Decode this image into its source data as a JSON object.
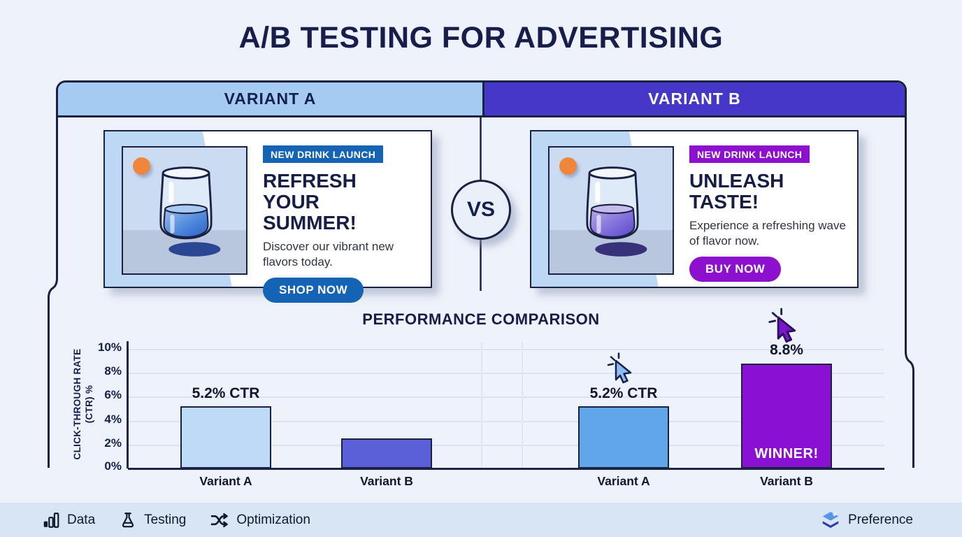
{
  "title": "A/B TESTING FOR ADVERTISING",
  "vs": "VS",
  "variant_a": {
    "header": "VARIANT A",
    "badge": "NEW DRINK LAUNCH",
    "headline": "REFRESH YOUR SUMMER!",
    "description": "Discover our vibrant new flavors today.",
    "cta": "SHOP NOW"
  },
  "variant_b": {
    "header": "VARIANT B",
    "badge": "NEW DRINK LAUNCH",
    "headline": "UNLEASH TASTE!",
    "description": "Experience a refreshing wave of flavor now.",
    "cta": "BUY NOW"
  },
  "chart_data": {
    "type": "bar",
    "title": "PERFORMANCE COMPARISON",
    "xlabel": "",
    "ylabel": "CLICK-THROUGH RATE (CTR) %",
    "ylim": [
      0,
      10
    ],
    "y_ticks": [
      "10%",
      "8%",
      "6%",
      "4%",
      "2%",
      "0%"
    ],
    "grid": true,
    "legend": "none",
    "groups": [
      {
        "name": "Variant A ad test",
        "categories": [
          "Variant A",
          "Variant B"
        ],
        "values": [
          5.2,
          2.5
        ],
        "bar_labels": [
          "5.2% CTR",
          ""
        ],
        "colors": [
          "#BEDAF6",
          "#5C60D8"
        ]
      },
      {
        "name": "Variant B ad test",
        "categories": [
          "Variant A",
          "Variant B"
        ],
        "values": [
          5.2,
          8.8
        ],
        "bar_labels": [
          "5.2% CTR",
          "8.8%"
        ],
        "colors": [
          "#60A6EB",
          "#8A10D3"
        ],
        "winner_label": "WINNER!"
      }
    ],
    "annotations": [
      {
        "icon": "click-cursor-icon-blue",
        "target": "Variant A (right group)"
      },
      {
        "icon": "click-cursor-icon-purple",
        "target": "Variant B (right group)"
      }
    ]
  },
  "footer": {
    "items": [
      {
        "icon": "bar-chart-icon",
        "label": "Data"
      },
      {
        "icon": "flask-icon",
        "label": "Testing"
      },
      {
        "icon": "shuffle-icon",
        "label": "Optimization"
      }
    ],
    "preference": {
      "icon": "layers-icon",
      "label": "Preference"
    }
  },
  "colors": {
    "background": "#EEF2FA",
    "title_text": "#171E4B",
    "variant_a_header": "#A5CBF3",
    "variant_b_header": "#4537C8",
    "badge_a": "#1563B5",
    "badge_b": "#8C10CE",
    "cta_a": "#1563B5",
    "cta_b": "#8C10CE",
    "accent_orange": "#F0863C",
    "footer_bar": "#D8E5F5",
    "winner_text": "#FFFFFF",
    "outline": "#1A2142"
  }
}
